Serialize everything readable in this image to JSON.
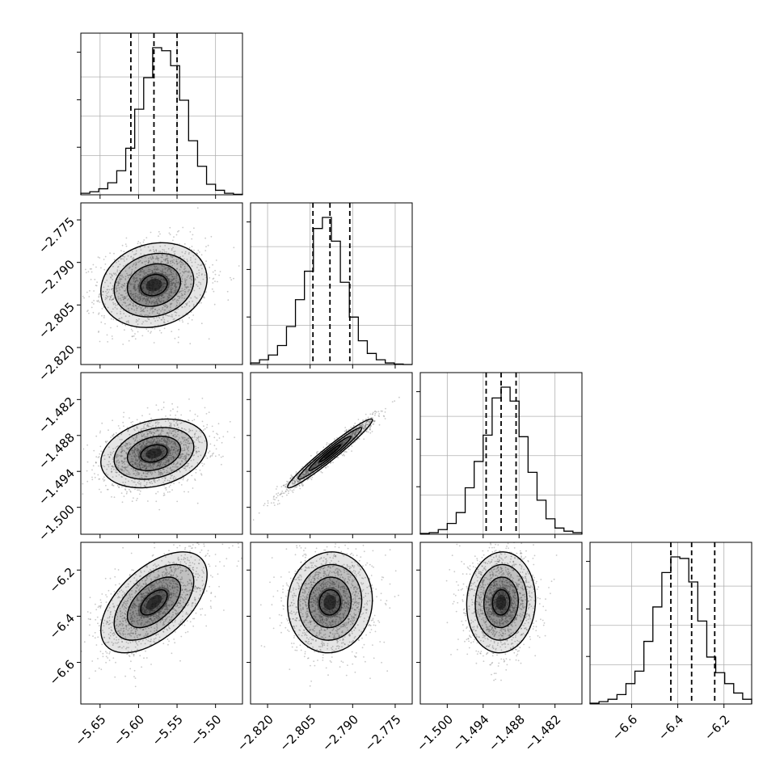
{
  "chart_data": {
    "type": "corner",
    "parameters": [
      {
        "range": [
          -5.675,
          -5.465
        ],
        "ticks": [
          -5.65,
          -5.6,
          -5.55,
          -5.5
        ],
        "tick_labels": [
          "−5.65",
          "−5.60",
          "−5.55",
          "−5.50"
        ],
        "median": -5.58,
        "q16": -5.61,
        "q84": -5.55
      },
      {
        "range": [
          -2.826,
          -2.769
        ],
        "ticks": [
          -2.82,
          -2.805,
          -2.79,
          -2.775
        ],
        "tick_labels": [
          "−2.820",
          "−2.805",
          "−2.790",
          "−2.775"
        ],
        "median": -2.798,
        "q16": -2.804,
        "q84": -2.791
      },
      {
        "range": [
          -1.5045,
          -1.4775
        ],
        "ticks": [
          -1.5,
          -1.494,
          -1.488,
          -1.482
        ],
        "tick_labels": [
          "−1.500",
          "−1.494",
          "−1.488",
          "−1.482"
        ],
        "median": -1.491,
        "q16": -1.4935,
        "q84": -1.4885
      },
      {
        "range": [
          -6.78,
          -6.08
        ],
        "ticks": [
          -6.6,
          -6.4,
          -6.2
        ],
        "tick_labels": [
          "−6.6",
          "−6.4",
          "−6.2"
        ],
        "median": -6.34,
        "q16": -6.43,
        "q84": -6.24
      }
    ],
    "histograms": [
      {
        "counts": [
          1,
          2,
          4,
          8,
          16,
          31,
          57,
          78,
          98,
          96,
          86,
          63,
          36,
          19,
          7,
          3,
          1,
          0.3
        ]
      },
      {
        "counts": [
          1,
          3,
          6,
          12,
          24,
          41,
          59,
          86,
          93,
          78,
          52,
          30,
          15,
          7,
          3,
          1,
          0.3,
          0
        ]
      },
      {
        "counts": [
          0.5,
          1,
          3,
          7,
          14,
          30,
          47,
          64,
          88,
          95,
          86,
          63,
          40,
          22,
          10,
          4,
          2,
          1
        ]
      },
      {
        "counts": [
          0.5,
          1.5,
          3,
          6,
          13,
          21,
          40,
          62,
          84,
          94,
          93,
          78,
          53,
          30,
          20,
          13,
          7,
          3
        ]
      }
    ],
    "pairs": [
      {
        "x": 0,
        "y": 1,
        "rho": 0.15
      },
      {
        "x": 0,
        "y": 2,
        "rho": 0.25
      },
      {
        "x": 1,
        "y": 2,
        "rho": 0.97
      },
      {
        "x": 0,
        "y": 3,
        "rho": 0.55
      },
      {
        "x": 1,
        "y": 3,
        "rho": 0.05
      },
      {
        "x": 2,
        "y": 3,
        "rho": 0.05
      }
    ],
    "grid": true,
    "colors": {
      "line": "#000000",
      "points": "#888888",
      "grid": "#b0b0b0"
    }
  }
}
